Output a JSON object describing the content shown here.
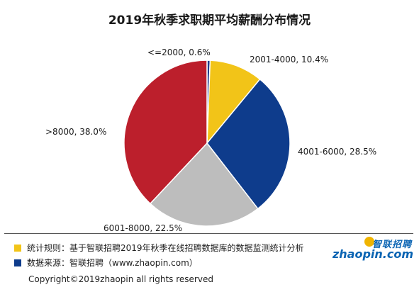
{
  "chart_data": {
    "type": "pie",
    "title": "2019年秋季求职期平均薪酬分布情况",
    "slices": [
      {
        "label": "<=2000, 0.6%",
        "category": "<=2000",
        "value": 0.6,
        "color": "#1f3f8f"
      },
      {
        "label": "2001-4000, 10.4%",
        "category": "2001-4000",
        "value": 10.4,
        "color": "#f2c418"
      },
      {
        "label": "4001-6000, 28.5%",
        "category": "4001-6000",
        "value": 28.5,
        "color": "#0e3c8c"
      },
      {
        "label": "6001-8000, 22.5%",
        "category": "6001-8000",
        "value": 22.5,
        "color": "#bdbdbd"
      },
      {
        "label": ">8000, 38.0%",
        "category": ">8000",
        "value": 38.0,
        "color": "#bc1f2c"
      }
    ]
  },
  "footer": {
    "note1": {
      "text": "统计规则：基于智联招聘2019年秋季在线招聘数据库的数据监测统计分析",
      "color": "#f2c418"
    },
    "note2": {
      "text": "数据来源：智联招聘（www.zhaopin.com）",
      "color": "#0e3c8c"
    },
    "copyright": "Copyright©2019zhaopin all rights reserved"
  },
  "logo": {
    "cn": "智联招聘",
    "en": "zhaopin.com"
  }
}
